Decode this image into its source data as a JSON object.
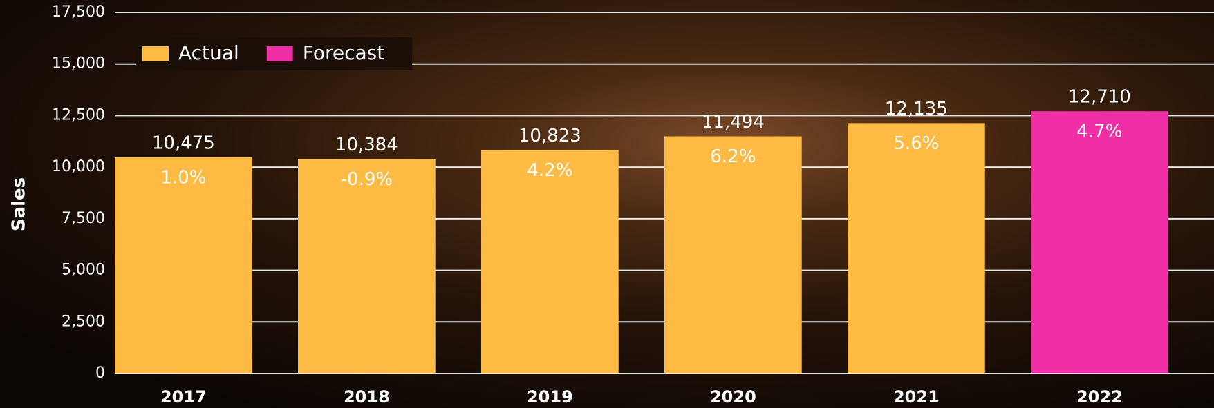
{
  "chart_data": {
    "type": "bar",
    "y_label": "Sales",
    "categories": [
      "2017",
      "2018",
      "2019",
      "2020",
      "2021",
      "2022"
    ],
    "series": [
      {
        "name": "Actual",
        "color": "#fdbb43",
        "values": [
          10475,
          10384,
          10823,
          11494,
          12135,
          null
        ],
        "value_labels": [
          "10,475",
          "10,384",
          "10,823",
          "11,494",
          "12,135",
          null
        ],
        "growth": [
          1.0,
          -0.9,
          4.2,
          6.2,
          5.6,
          null
        ],
        "growth_labels": [
          "1.0%",
          "-0.9%",
          "4.2%",
          "6.2%",
          "5.6%",
          null
        ]
      },
      {
        "name": "Forecast",
        "color": "#f02fa6",
        "values": [
          null,
          null,
          null,
          null,
          null,
          12710
        ],
        "value_labels": [
          null,
          null,
          null,
          null,
          null,
          "12,710"
        ],
        "growth": [
          null,
          null,
          null,
          null,
          null,
          4.7
        ],
        "growth_labels": [
          null,
          null,
          null,
          null,
          null,
          "4.7%"
        ]
      }
    ],
    "ylim": [
      0,
      17500
    ],
    "yticks": [
      0,
      {
        "value": 2500,
        "label": "2,500"
      },
      {
        "value": 5000,
        "label": "5,000"
      },
      {
        "value": 7500,
        "label": "7,500"
      },
      {
        "value": 10000,
        "label": "10,000"
      },
      {
        "value": 12500,
        "label": "12,500"
      },
      {
        "value": 15000,
        "label": "15,000"
      },
      {
        "value": 17500,
        "label": "17,500"
      }
    ],
    "grid": true,
    "legend": "top-left"
  }
}
